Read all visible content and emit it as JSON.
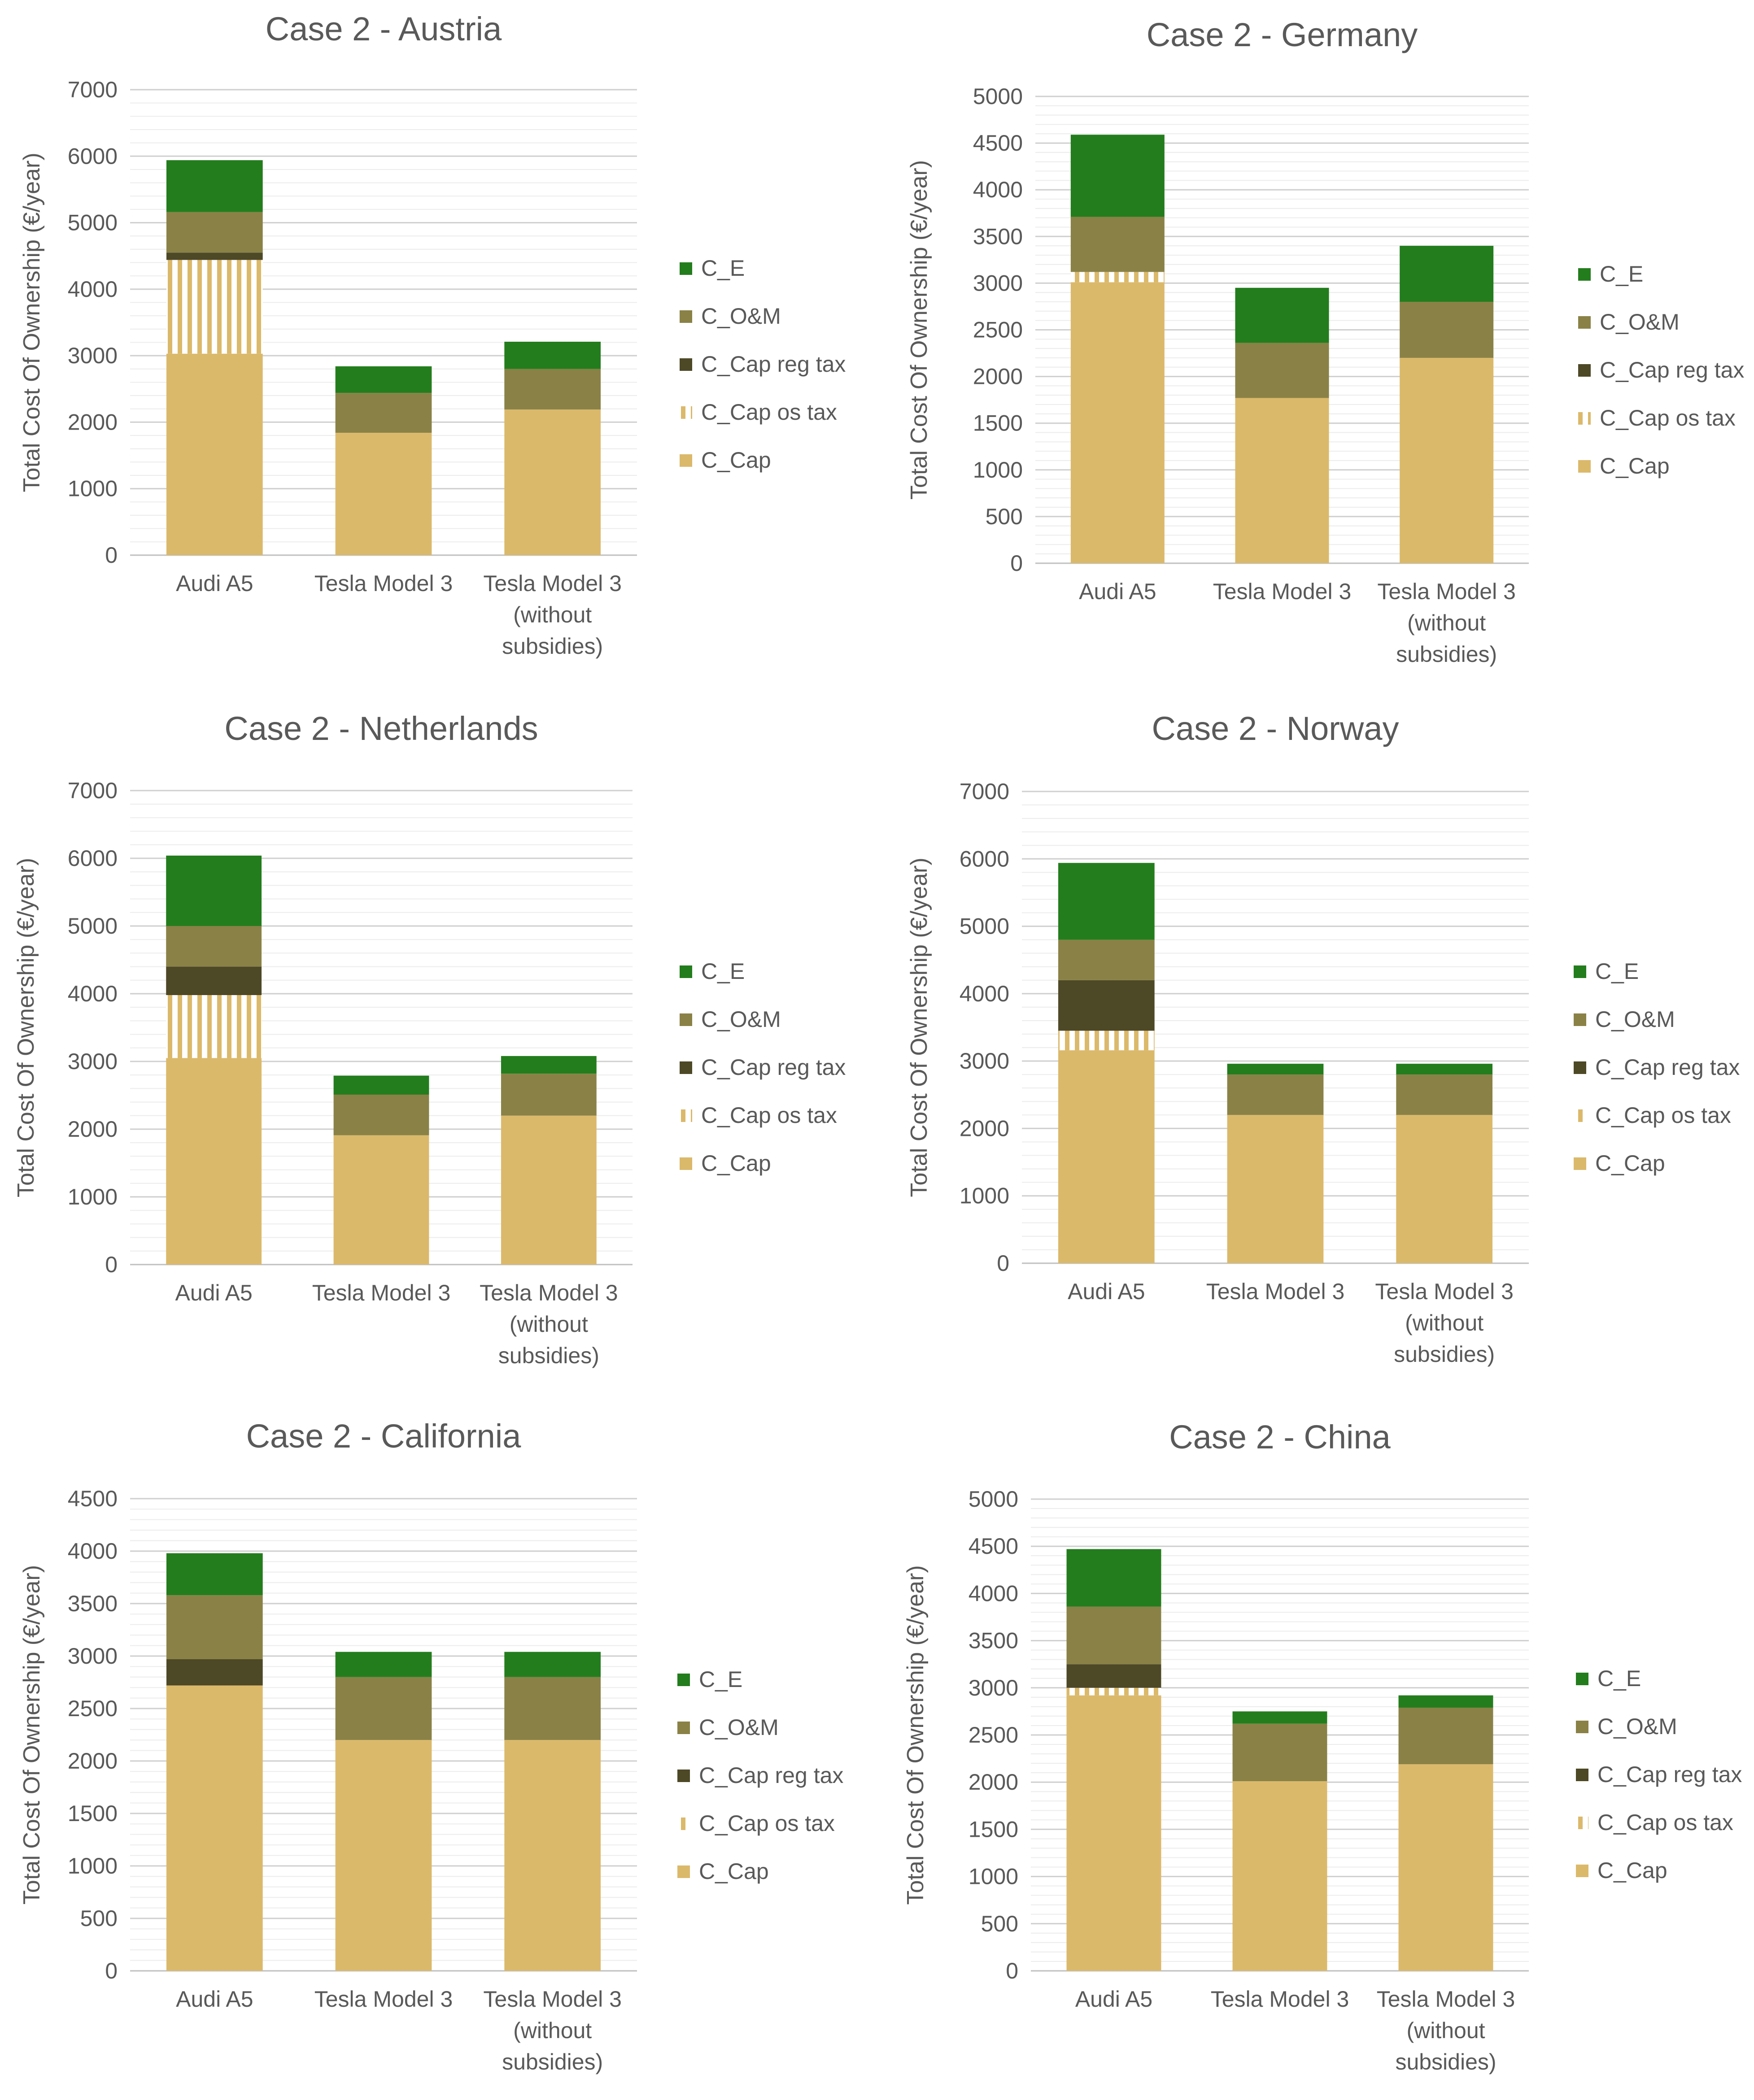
{
  "legend_labels": [
    "C_E",
    "C_O&M",
    "C_Cap reg tax",
    "C_Cap os tax",
    "C_Cap"
  ],
  "colors": {
    "C_Cap": "#dbb96b",
    "C_Cap os tax": "#dbb96b",
    "C_Cap reg tax": "#4d4826",
    "C_O&M": "#8a8146",
    "C_E": "#237d1d",
    "axis_text": "#595959",
    "title_text": "#595959",
    "gridline": "#d9d9d9"
  },
  "chart_data": [
    {
      "type": "bar",
      "stacked": true,
      "title": "Case 2 - Austria",
      "ylabel": "Total Cost Of Ownership (€/year)",
      "ylim": [
        0,
        7000
      ],
      "ytick_step": 1000,
      "categories": [
        "Audi A5",
        "Tesla Model 3",
        "Tesla Model 3 (without subsidies)"
      ],
      "series": [
        {
          "name": "C_Cap",
          "values": [
            3030,
            1840,
            2190
          ]
        },
        {
          "name": "C_Cap os tax",
          "values": [
            1410,
            0,
            0
          ]
        },
        {
          "name": "C_Cap reg tax",
          "values": [
            110,
            0,
            0
          ]
        },
        {
          "name": "C_O&M",
          "values": [
            610,
            600,
            610
          ]
        },
        {
          "name": "C_E",
          "values": [
            780,
            400,
            410
          ]
        }
      ]
    },
    {
      "type": "bar",
      "stacked": true,
      "title": "Case 2 - Germany",
      "ylabel": "Total Cost Of Ownership (€/year)",
      "ylim": [
        0,
        5000
      ],
      "ytick_step": 500,
      "categories": [
        "Audi A5",
        "Tesla Model 3",
        "Tesla Model 3 (without subsidies)"
      ],
      "series": [
        {
          "name": "C_Cap",
          "values": [
            3010,
            1770,
            2200
          ]
        },
        {
          "name": "C_Cap os tax",
          "values": [
            110,
            0,
            0
          ]
        },
        {
          "name": "C_Cap reg tax",
          "values": [
            0,
            0,
            0
          ]
        },
        {
          "name": "C_O&M",
          "values": [
            590,
            590,
            600
          ]
        },
        {
          "name": "C_E",
          "values": [
            880,
            590,
            600
          ]
        }
      ]
    },
    {
      "type": "bar",
      "stacked": true,
      "title": "Case 2 - Netherlands",
      "ylabel": "Total Cost Of Ownership (€/year)",
      "ylim": [
        0,
        7000
      ],
      "ytick_step": 1000,
      "categories": [
        "Audi A5",
        "Tesla Model 3",
        "Tesla Model 3 (without subsidies)"
      ],
      "series": [
        {
          "name": "C_Cap",
          "values": [
            3050,
            1910,
            2200
          ]
        },
        {
          "name": "C_Cap os tax",
          "values": [
            930,
            0,
            0
          ]
        },
        {
          "name": "C_Cap reg tax",
          "values": [
            420,
            0,
            0
          ]
        },
        {
          "name": "C_O&M",
          "values": [
            600,
            600,
            620
          ]
        },
        {
          "name": "C_E",
          "values": [
            1040,
            280,
            260
          ]
        }
      ]
    },
    {
      "type": "bar",
      "stacked": true,
      "title": "Case 2 - Norway",
      "ylabel": "Total Cost Of Ownership (€/year)",
      "ylim": [
        0,
        7000
      ],
      "ytick_step": 1000,
      "categories": [
        "Audi A5",
        "Tesla Model 3",
        "Tesla Model 3 (without subsidies)"
      ],
      "series": [
        {
          "name": "C_Cap",
          "values": [
            3160,
            2200,
            2200
          ]
        },
        {
          "name": "C_Cap os tax",
          "values": [
            290,
            0,
            0
          ]
        },
        {
          "name": "C_Cap reg tax",
          "values": [
            750,
            0,
            0
          ]
        },
        {
          "name": "C_O&M",
          "values": [
            600,
            600,
            600
          ]
        },
        {
          "name": "C_E",
          "values": [
            1140,
            160,
            160
          ]
        }
      ]
    },
    {
      "type": "bar",
      "stacked": true,
      "title": "Case 2 - California",
      "ylabel": "Total Cost Of Ownership (€/year)",
      "ylim": [
        0,
        4500
      ],
      "ytick_step": 500,
      "categories": [
        "Audi A5",
        "Tesla Model 3",
        "Tesla Model 3 (without subsidies)"
      ],
      "series": [
        {
          "name": "C_Cap",
          "values": [
            2720,
            2200,
            2200
          ]
        },
        {
          "name": "C_Cap os tax",
          "values": [
            0,
            0,
            0
          ]
        },
        {
          "name": "C_Cap reg tax",
          "values": [
            250,
            0,
            0
          ]
        },
        {
          "name": "C_O&M",
          "values": [
            610,
            600,
            600
          ]
        },
        {
          "name": "C_E",
          "values": [
            400,
            240,
            240
          ]
        }
      ]
    },
    {
      "type": "bar",
      "stacked": true,
      "title": "Case 2 - China",
      "ylabel": "Total Cost Of Ownership (€/year)",
      "ylim": [
        0,
        5000
      ],
      "ytick_step": 500,
      "categories": [
        "Audi A5",
        "Tesla Model 3",
        "Tesla Model 3 (without subsidies)"
      ],
      "series": [
        {
          "name": "C_Cap",
          "values": [
            2920,
            2010,
            2190
          ]
        },
        {
          "name": "C_Cap os tax",
          "values": [
            80,
            0,
            0
          ]
        },
        {
          "name": "C_Cap reg tax",
          "values": [
            250,
            0,
            0
          ]
        },
        {
          "name": "C_O&M",
          "values": [
            610,
            610,
            600
          ]
        },
        {
          "name": "C_E",
          "values": [
            610,
            130,
            130
          ]
        }
      ]
    }
  ]
}
